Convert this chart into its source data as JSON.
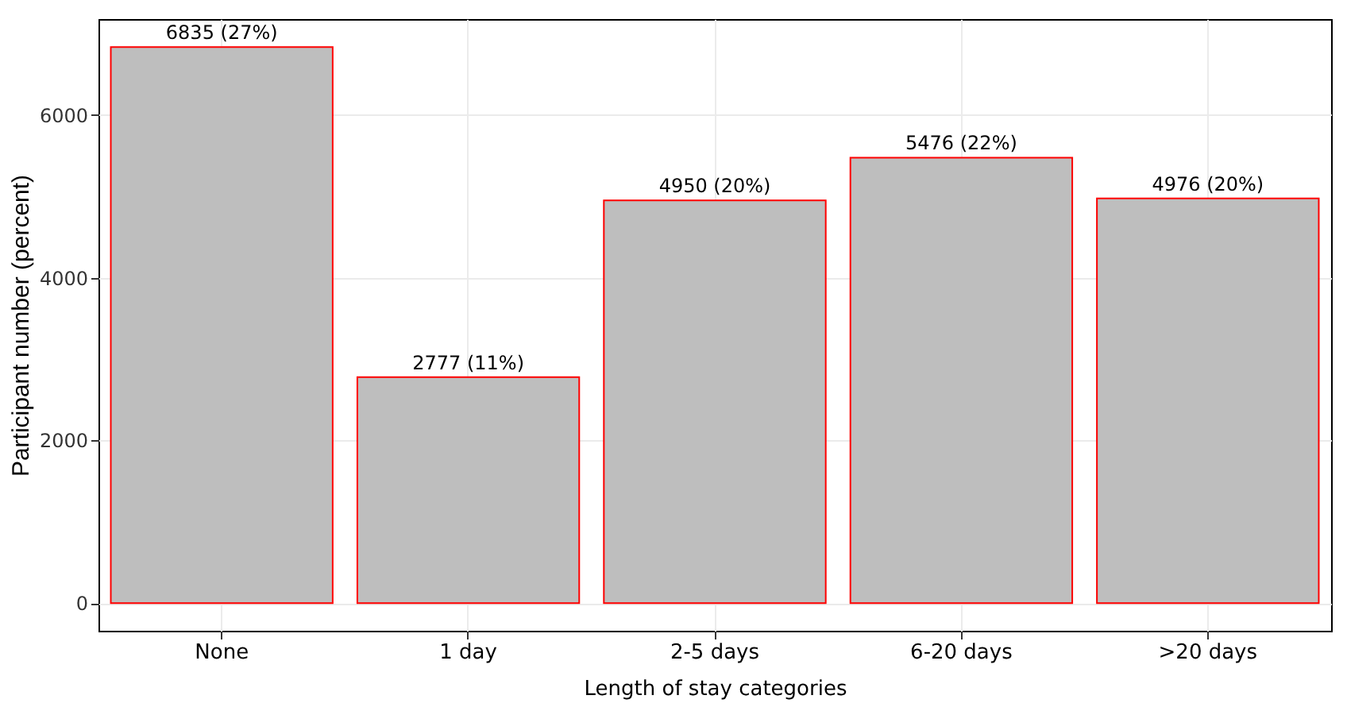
{
  "chart_data": {
    "type": "bar",
    "xlabel": "Length of stay categories",
    "ylabel": "Participant number (percent)",
    "categories": [
      "None",
      "1 day",
      "2-5 days",
      "6-20 days",
      ">20 days"
    ],
    "values": [
      6835,
      2777,
      4950,
      5476,
      4976
    ],
    "value_labels": [
      "6835 (27%)",
      "2777 (11%)",
      "4950 (20%)",
      "5476 (22%)",
      "4976 (20%)"
    ],
    "color": "#bebebe",
    "ylim": [
      -340,
      7180
    ],
    "yticks": [
      0,
      2000,
      4000,
      6000
    ],
    "grid": true
  }
}
